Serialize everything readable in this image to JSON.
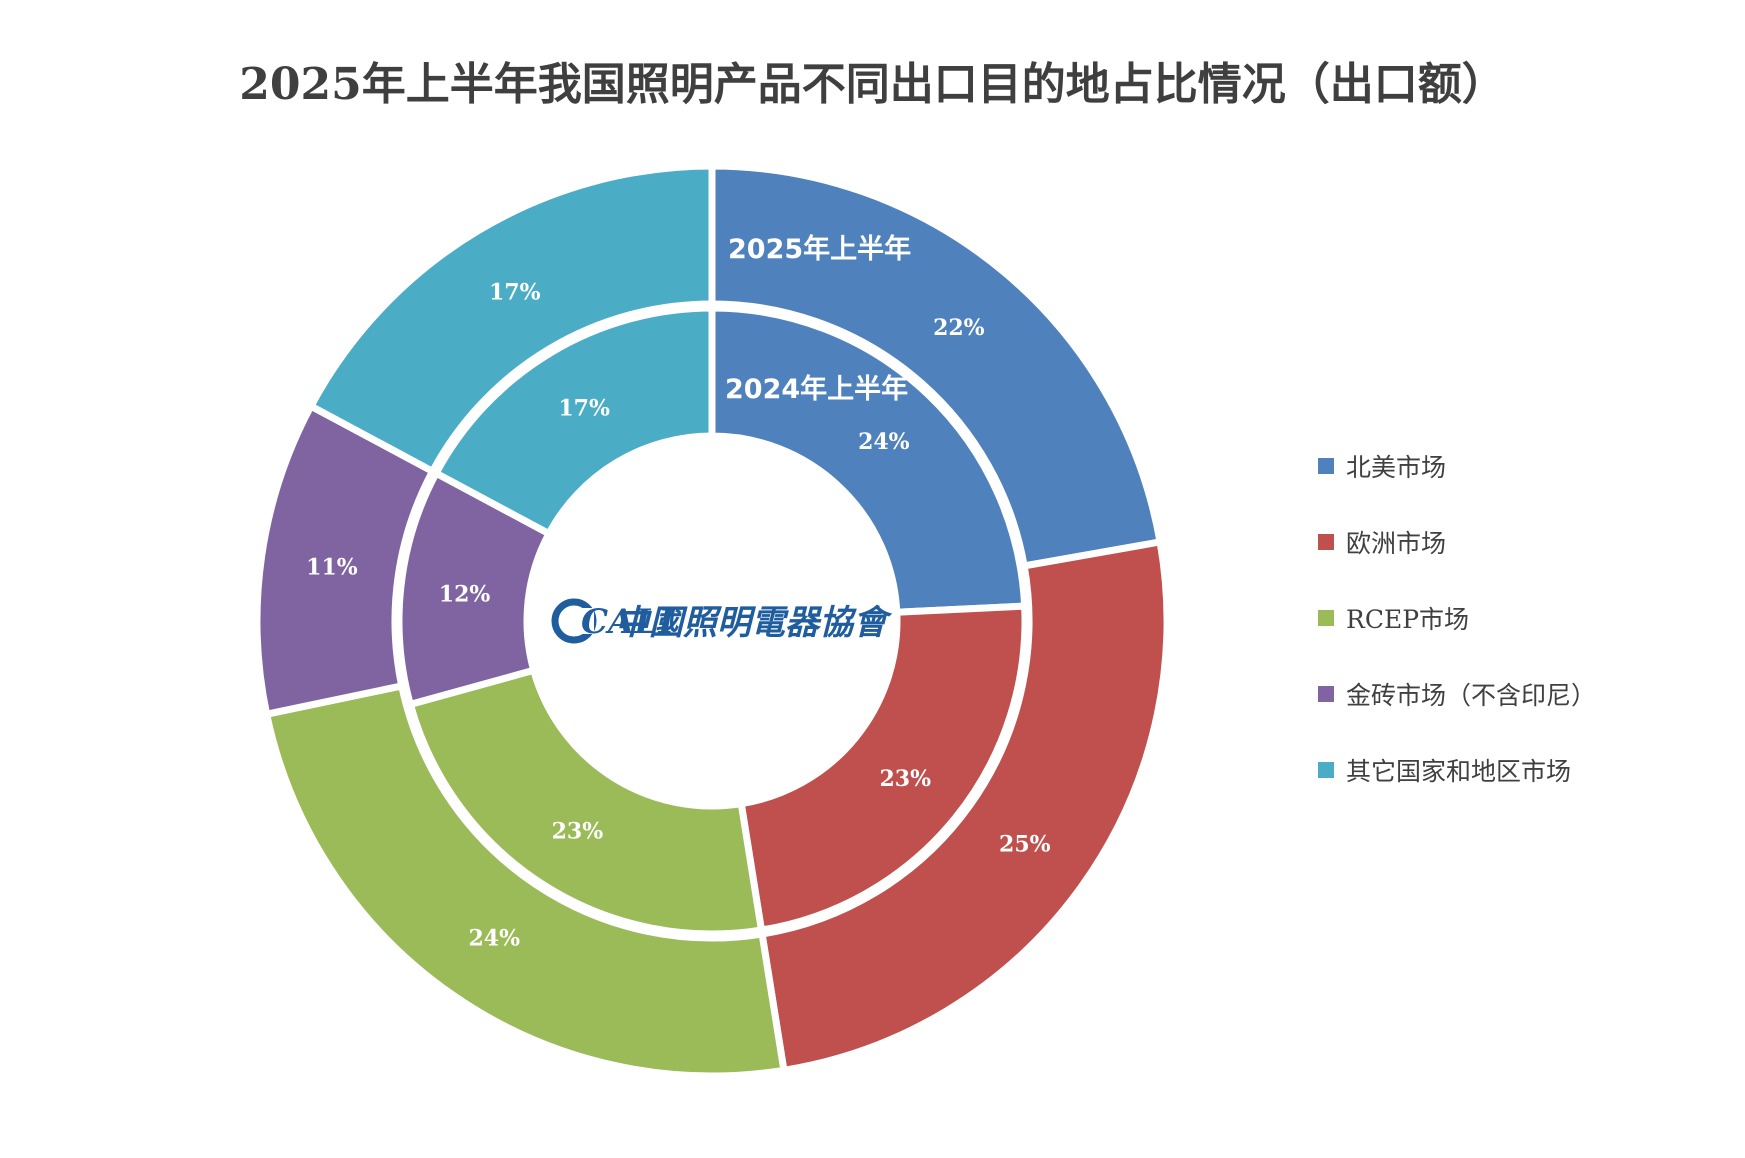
{
  "chart_data": {
    "type": "pie",
    "subtype": "nested-donut",
    "title": "2025年上半年我国照明产品不同出口目的地占比情况（出口额）",
    "categories": [
      "北美市场",
      "欧洲市场",
      "RCEP市场",
      "金砖市场（不含印尼）",
      "其它国家和地区市场"
    ],
    "colors": [
      "#4f81bd",
      "#c0504d",
      "#9bbb59",
      "#8064a2",
      "#4bacc6"
    ],
    "series": [
      {
        "name": "2025年上半年",
        "ring": "outer",
        "values": [
          22,
          25,
          24,
          11,
          17
        ],
        "labels": [
          "22%",
          "25%",
          "24%",
          "11%",
          "17%"
        ]
      },
      {
        "name": "2024年上半年",
        "ring": "inner",
        "values": [
          24,
          23,
          23,
          12,
          17
        ],
        "labels": [
          "24%",
          "23%",
          "23%",
          "12%",
          "17%"
        ]
      }
    ],
    "legend_position": "right",
    "unit": "%"
  },
  "logo": {
    "text": "中國照明電器協會",
    "mark": "CALI",
    "icon": "cali-logo-icon"
  }
}
